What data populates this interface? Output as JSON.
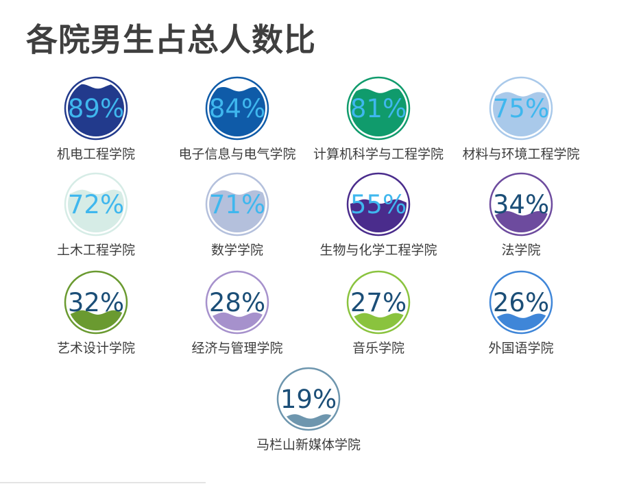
{
  "chart_data": {
    "type": "liquid-fill",
    "title": "各院男生占总人数比",
    "items": [
      {
        "label": "机电工程学院",
        "value": 89,
        "display": "89%",
        "color": "#223A8C",
        "text_color": "#3FB7EE"
      },
      {
        "label": "电子信息与电气学院",
        "value": 84,
        "display": "84%",
        "color": "#0F5BA8",
        "text_color": "#3FB7EE"
      },
      {
        "label": "计算机科学与工程学院",
        "value": 81,
        "display": "81%",
        "color": "#109B6C",
        "text_color": "#3FB7EE"
      },
      {
        "label": "材料与环境工程学院",
        "value": 75,
        "display": "75%",
        "color": "#A9C9EA",
        "text_color": "#3FB7EE"
      },
      {
        "label": "土木工程学院",
        "value": 72,
        "display": "72%",
        "color": "#D6ECE6",
        "text_color": "#3FB7EE"
      },
      {
        "label": "数学学院",
        "value": 71,
        "display": "71%",
        "color": "#B4C0DC",
        "text_color": "#3FB7EE"
      },
      {
        "label": "生物与化学工程学院",
        "value": 55,
        "display": "55%",
        "color": "#4A2C8C",
        "text_color": "#3FB7EE"
      },
      {
        "label": "法学院",
        "value": 34,
        "display": "34%",
        "color": "#6D4B9E",
        "text_color": "#1B4E77"
      },
      {
        "label": "艺术设计学院",
        "value": 32,
        "display": "32%",
        "color": "#6A9A30",
        "text_color": "#1B4E77"
      },
      {
        "label": "经济与管理学院",
        "value": 28,
        "display": "28%",
        "color": "#A691CC",
        "text_color": "#1B4E77"
      },
      {
        "label": "音乐学院",
        "value": 27,
        "display": "27%",
        "color": "#8AC33E",
        "text_color": "#1B4E77"
      },
      {
        "label": "外国语学院",
        "value": 26,
        "display": "26%",
        "color": "#3F86D8",
        "text_color": "#1B4E77"
      },
      {
        "label": "马栏山新媒体学院",
        "value": 19,
        "display": "19%",
        "color": "#6E96AE",
        "text_color": "#1B4E77"
      }
    ]
  }
}
